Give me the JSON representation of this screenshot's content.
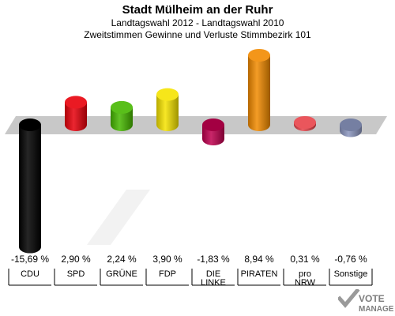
{
  "header": {
    "title": "Stadt Mülheim an der Ruhr",
    "subtitle1": "Landtagswahl 2012 - Landtagswahl 2010",
    "subtitle2": "Zweitstimmen Gewinne und Verluste Stimmbezirk 101"
  },
  "chart_data": {
    "type": "bar",
    "categories": [
      "CDU",
      "SPD",
      "GRÜNE",
      "FDP",
      "DIE LINKE",
      "PIRATEN",
      "pro NRW",
      "Sonstige"
    ],
    "category_lines": [
      [
        "CDU"
      ],
      [
        "SPD"
      ],
      [
        "GRÜNE"
      ],
      [
        "FDP"
      ],
      [
        "DIE",
        "LINKE"
      ],
      [
        "PIRATEN"
      ],
      [
        "pro",
        "NRW"
      ],
      [
        "Sonstige"
      ]
    ],
    "values": [
      -15.69,
      2.9,
      2.24,
      3.9,
      -1.83,
      8.94,
      0.31,
      -0.76
    ],
    "value_labels": [
      "-15,69 %",
      "2,90 %",
      "2,24 %",
      "3,90 %",
      "-1,83 %",
      "8,94 %",
      "0,31 %",
      "-0,76 %"
    ],
    "colors": [
      "#000000",
      "#e8000b",
      "#46b800",
      "#f5e300",
      "#c0004e",
      "#f28a00",
      "#e8434a",
      "#8a95be"
    ],
    "title": "",
    "xlabel": "",
    "ylabel": "",
    "ylim": [
      -16,
      9
    ]
  },
  "logo": {
    "line1": "VOTE",
    "line2": "MANAGER"
  }
}
